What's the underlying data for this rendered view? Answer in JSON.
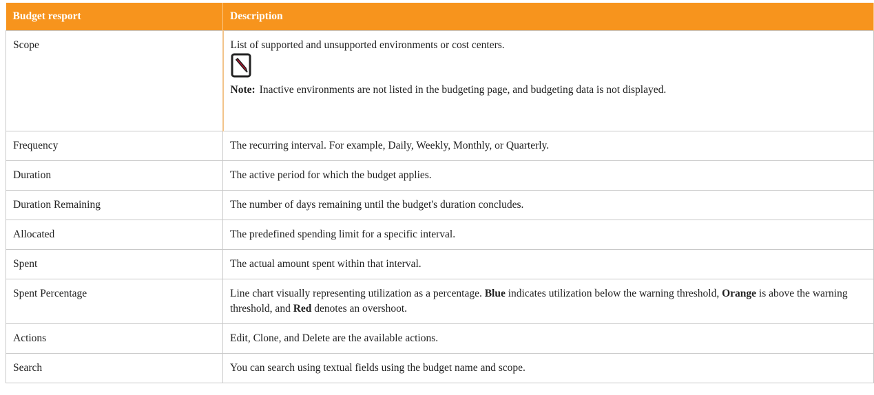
{
  "table": {
    "headers": [
      "Budget resport",
      "Description"
    ],
    "rows": [
      {
        "name": "Scope",
        "description": [
          {
            "text": "List of supported and unsupported environments or cost centers.",
            "bold": false
          }
        ],
        "note": {
          "label": "Note:",
          "text": "Inactive environments are not listed in the budgeting page, and budgeting data is not displayed."
        }
      },
      {
        "name": "Frequency",
        "description": [
          {
            "text": "The recurring interval. For example, Daily, Weekly, Monthly, or Quarterly.",
            "bold": false
          }
        ]
      },
      {
        "name": "Duration",
        "description": [
          {
            "text": "The active period for which the budget applies.",
            "bold": false
          }
        ]
      },
      {
        "name": "Duration Remaining",
        "description": [
          {
            "text": "The number of days remaining until the budget's duration concludes.",
            "bold": false
          }
        ]
      },
      {
        "name": "Allocated",
        "description": [
          {
            "text": "The predefined spending limit for a specific interval.",
            "bold": false
          }
        ]
      },
      {
        "name": "Spent",
        "description": [
          {
            "text": "The actual amount spent within that interval.",
            "bold": false
          }
        ]
      },
      {
        "name": "Spent Percentage",
        "description": [
          {
            "text": "Line chart visually representing utilization as a percentage. ",
            "bold": false
          },
          {
            "text": "Blue",
            "bold": true
          },
          {
            "text": " indicates utilization below the warning threshold, ",
            "bold": false
          },
          {
            "text": "Orange",
            "bold": true
          },
          {
            "text": " is above the warning threshold, and ",
            "bold": false
          },
          {
            "text": "Red",
            "bold": true
          },
          {
            "text": " denotes an overshoot.",
            "bold": false
          }
        ]
      },
      {
        "name": "Actions",
        "description": [
          {
            "text": "Edit, Clone, and Delete are the available actions.",
            "bold": false
          }
        ]
      },
      {
        "name": "Search",
        "description": [
          {
            "text": "You can search using textual fields using the budget name and scope.",
            "bold": false
          }
        ]
      }
    ]
  }
}
